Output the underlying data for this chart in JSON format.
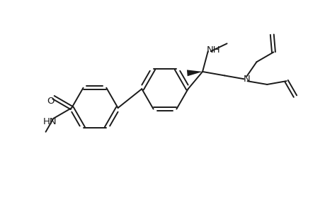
{
  "bg_color": "#ffffff",
  "line_color": "#1a1a1a",
  "line_width": 1.4,
  "font_size": 9.5,
  "figsize": [
    4.6,
    3.0
  ],
  "dpi": 100,
  "xlim": [
    0,
    460
  ],
  "ylim": [
    0,
    300
  ]
}
